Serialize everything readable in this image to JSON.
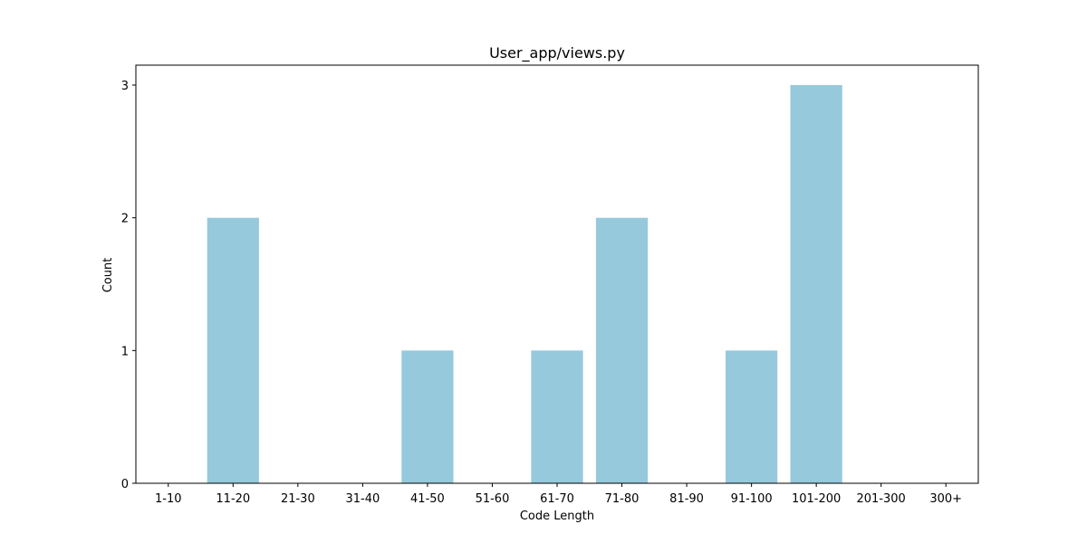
{
  "chart_data": {
    "type": "bar",
    "title": "User_app/views.py",
    "xlabel": "Code Length",
    "ylabel": "Count",
    "categories": [
      "1-10",
      "11-20",
      "21-30",
      "31-40",
      "41-50",
      "51-60",
      "61-70",
      "71-80",
      "81-90",
      "91-100",
      "101-200",
      "201-300",
      "300+"
    ],
    "values": [
      0,
      2,
      0,
      0,
      1,
      0,
      1,
      2,
      0,
      1,
      3,
      0,
      0
    ],
    "ylim": [
      0,
      3.15
    ],
    "yticks": [
      0,
      1,
      2,
      3
    ],
    "grid": false,
    "legend": "none",
    "bar_color": "#96c9dc",
    "axis_color": "#000000"
  }
}
